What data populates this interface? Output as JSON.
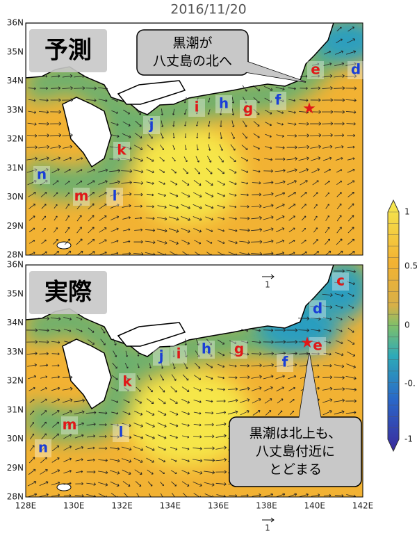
{
  "title": "2016/11/20",
  "panels": [
    {
      "label": "予測",
      "callout": [
        "黒潮が",
        "八丈島の北へ"
      ],
      "regions": [
        {
          "text": "n",
          "color": "#1a3fd6"
        },
        {
          "text": "m",
          "color": "#e01818"
        },
        {
          "text": "l",
          "color": "#1a3fd6"
        },
        {
          "text": "k",
          "color": "#e01818"
        },
        {
          "text": "j",
          "color": "#1a3fd6"
        },
        {
          "text": "i",
          "color": "#e01818"
        },
        {
          "text": "h",
          "color": "#1a3fd6"
        },
        {
          "text": "g",
          "color": "#e01818"
        },
        {
          "text": "f",
          "color": "#1a3fd6"
        },
        {
          "text": "e",
          "color": "#e01818"
        },
        {
          "text": "d",
          "color": "#1a3fd6"
        }
      ]
    },
    {
      "label": "実際",
      "callout": [
        "黒潮は北上も、",
        "八丈島付近に",
        "とどまる"
      ],
      "regions": [
        {
          "text": "c",
          "color": "#e01818"
        },
        {
          "text": "d",
          "color": "#1a3fd6"
        },
        {
          "text": "e",
          "color": "#e01818"
        },
        {
          "text": "f",
          "color": "#1a3fd6"
        },
        {
          "text": "g",
          "color": "#e01818"
        },
        {
          "text": "h",
          "color": "#1a3fd6"
        },
        {
          "text": "i",
          "color": "#e01818"
        },
        {
          "text": "j",
          "color": "#1a3fd6"
        },
        {
          "text": "k",
          "color": "#e01818"
        },
        {
          "text": "l",
          "color": "#1a3fd6"
        },
        {
          "text": "m",
          "color": "#e01818"
        },
        {
          "text": "n",
          "color": "#1a3fd6"
        }
      ]
    }
  ],
  "lat_ticks": [
    "36N",
    "35N",
    "34N",
    "33N",
    "32N",
    "31N",
    "30N",
    "29N",
    "28N"
  ],
  "lon_ticks": [
    "128E",
    "130E",
    "132E",
    "134E",
    "136E",
    "138E",
    "140E",
    "142E"
  ],
  "colorbar_ticks": [
    "1",
    "0.5",
    "0",
    "-0.",
    "-1"
  ],
  "vector_scale_labels": [
    "1",
    "1"
  ]
}
